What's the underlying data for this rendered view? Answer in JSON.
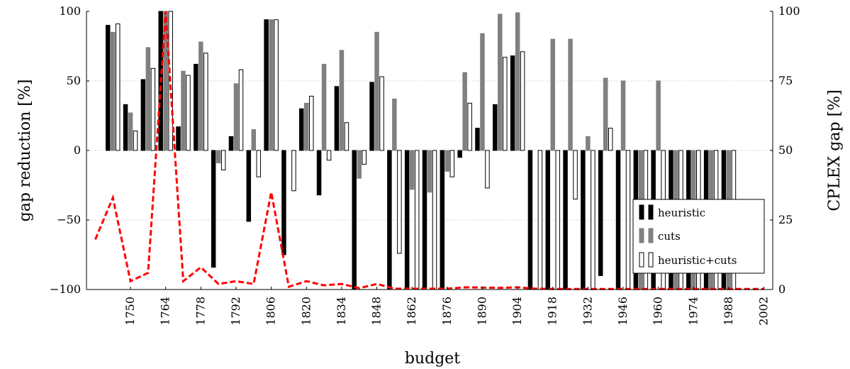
{
  "chart_data": {
    "type": "bar",
    "title": "",
    "xlabel": "budget",
    "ylabel": "gap reduction [%]",
    "ylabel_right": "CPLEX gap [%]",
    "ylim": [
      -100,
      100
    ],
    "ylim_right": [
      0,
      100
    ],
    "yticks": [
      "−100",
      "−50",
      "0",
      "50",
      "100"
    ],
    "yticks_right": [
      "0",
      "25",
      "50",
      "75",
      "100"
    ],
    "grid": true,
    "legend_position": "lower-right",
    "categories": [
      1736,
      1743,
      1750,
      1757,
      1764,
      1771,
      1778,
      1785,
      1792,
      1799,
      1806,
      1813,
      1820,
      1827,
      1834,
      1841,
      1848,
      1855,
      1862,
      1869,
      1876,
      1883,
      1890,
      1897,
      1904,
      1911,
      1918,
      1925,
      1932,
      1939,
      1946,
      1953,
      1960,
      1967,
      1974,
      1981,
      1988,
      1995,
      2002
    ],
    "xtick_labels": [
      "1750",
      "1764",
      "1778",
      "1792",
      "1806",
      "1820",
      "1834",
      "1848",
      "1862",
      "1876",
      "1890",
      "1904",
      "1918",
      "1932",
      "1946",
      "1960",
      "1974",
      "1988",
      "2002"
    ],
    "series": [
      {
        "name": "heuristic",
        "color": "#000000",
        "values": [
          0,
          90,
          33,
          51,
          100,
          17,
          62,
          -84,
          10,
          -51,
          94,
          -75,
          30,
          -32,
          46,
          -100,
          49,
          -100,
          -100,
          -100,
          -100,
          -5,
          16,
          33,
          68,
          -100,
          -100,
          -100,
          -100,
          -90,
          -100,
          -100,
          -100,
          -100,
          -100,
          -100,
          -100,
          0,
          0
        ]
      },
      {
        "name": "cuts",
        "color": "#808080",
        "values": [
          0,
          85,
          27,
          74,
          100,
          57,
          78,
          -9,
          48,
          15,
          94,
          0,
          34,
          62,
          72,
          -20,
          85,
          37,
          -28,
          -30,
          -15,
          56,
          84,
          98,
          99,
          0,
          80,
          80,
          10,
          52,
          50,
          -100,
          50,
          -100,
          -100,
          -100,
          -100,
          0,
          0
        ]
      },
      {
        "name": "heuristic+cuts",
        "color": "#ffffff",
        "values": [
          0,
          91,
          14,
          59,
          100,
          54,
          70,
          -14,
          58,
          -19,
          94,
          -29,
          39,
          -7,
          20,
          -10,
          53,
          -74,
          -100,
          -100,
          -19,
          34,
          -27,
          67,
          71,
          -100,
          -100,
          -35,
          -100,
          16,
          -100,
          -100,
          -100,
          -100,
          -100,
          -100,
          -100,
          0,
          0
        ]
      }
    ],
    "line_series": {
      "name": "CPLEX gap",
      "color": "#ff0000",
      "axis": "right",
      "values": [
        18,
        33,
        3,
        6,
        100,
        3,
        8,
        2,
        3,
        2,
        35,
        1,
        3,
        1.5,
        2,
        0.5,
        2,
        0.3,
        0.3,
        0.3,
        0.3,
        0.8,
        0.7,
        0.6,
        0.8,
        0.3,
        0.2,
        0.2,
        0.2,
        0.2,
        0.2,
        0.2,
        0.2,
        0.2,
        0.2,
        0.2,
        0.2,
        0.2,
        0.2
      ]
    }
  }
}
